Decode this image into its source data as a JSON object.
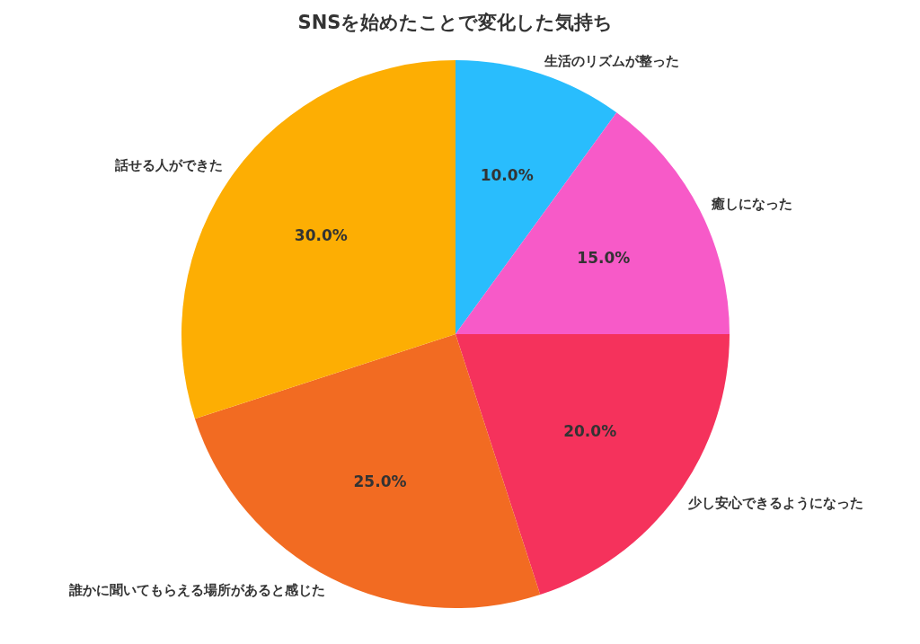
{
  "chart_data": {
    "type": "pie",
    "title": "SNSを始めたことで変化した気持ち",
    "categories": [
      "生活のリズムが整った",
      "癒しになった",
      "少し安心できるようになった",
      "誰かに聞いてもらえる場所があると感じた",
      "話せる人ができた"
    ],
    "values": [
      10,
      15,
      20,
      25,
      30
    ],
    "colors": [
      "#29bdfd",
      "#f75ac8",
      "#f5325c",
      "#f26b22",
      "#fdae03"
    ],
    "value_labels": [
      "10.0%",
      "15.0%",
      "20.0%",
      "25.0%",
      "30.0%"
    ],
    "legend": false
  }
}
